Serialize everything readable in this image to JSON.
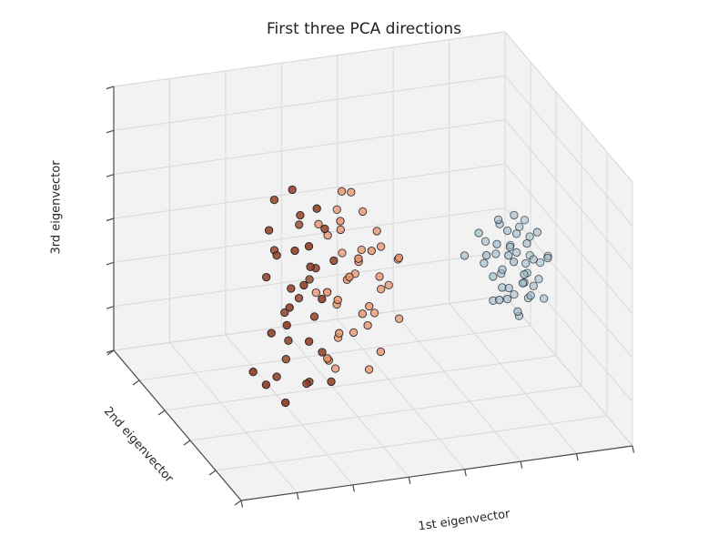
{
  "chart_data": {
    "type": "scatter",
    "projection": "3d",
    "title": "First three PCA directions",
    "xlabel": "1st eigenvector",
    "ylabel": "2nd eigenvector",
    "zlabel": "3rd eigenvector",
    "tick_labels": "none",
    "grid": true,
    "legend": "none",
    "colors": {
      "background": "#ffffff",
      "pane": "#f2f2f2",
      "pane_edge": "#dadada",
      "gridline": "#d9d9d9",
      "axis_line": "#4a4a4a",
      "point_edge": "#1f1f1f",
      "title_text": "#1f1f1f",
      "label_text": "#262626"
    },
    "divisions": {
      "u": 7,
      "v": 5,
      "w": 6
    },
    "series": [
      {
        "name": "cluster-dark-red",
        "color": "#8f3a1f",
        "points": [
          [
            0.3,
            0.52,
            0.82
          ],
          [
            0.34,
            0.45,
            0.78
          ],
          [
            0.28,
            0.6,
            0.74
          ],
          [
            0.33,
            0.55,
            0.7
          ],
          [
            0.37,
            0.48,
            0.68
          ],
          [
            0.31,
            0.42,
            0.66
          ],
          [
            0.26,
            0.58,
            0.64
          ],
          [
            0.35,
            0.62,
            0.62
          ],
          [
            0.3,
            0.5,
            0.6
          ],
          [
            0.38,
            0.44,
            0.58
          ],
          [
            0.27,
            0.55,
            0.56
          ],
          [
            0.33,
            0.47,
            0.55
          ],
          [
            0.29,
            0.63,
            0.53
          ],
          [
            0.36,
            0.52,
            0.51
          ],
          [
            0.31,
            0.46,
            0.49
          ],
          [
            0.25,
            0.57,
            0.47
          ],
          [
            0.34,
            0.41,
            0.46
          ],
          [
            0.3,
            0.53,
            0.44
          ],
          [
            0.37,
            0.6,
            0.42
          ],
          [
            0.28,
            0.48,
            0.4
          ],
          [
            0.33,
            0.56,
            0.38
          ],
          [
            0.26,
            0.44,
            0.36
          ],
          [
            0.35,
            0.5,
            0.34
          ],
          [
            0.3,
            0.58,
            0.32
          ],
          [
            0.24,
            0.5,
            0.3
          ],
          [
            0.32,
            0.45,
            0.28
          ],
          [
            0.29,
            0.52,
            0.25
          ],
          [
            0.36,
            0.47,
            0.22
          ],
          [
            0.22,
            0.48,
            0.12
          ],
          [
            0.27,
            0.55,
            0.1
          ],
          [
            0.33,
            0.5,
            0.09
          ],
          [
            0.38,
            0.46,
            0.11
          ],
          [
            0.25,
            0.42,
            0.08
          ],
          [
            0.31,
            0.6,
            0.13
          ],
          [
            0.2,
            0.52,
            0.15
          ],
          [
            0.35,
            0.54,
            0.07
          ]
        ]
      },
      {
        "name": "cluster-orange",
        "color": "#e8906a",
        "points": [
          [
            0.42,
            0.5,
            0.8
          ],
          [
            0.46,
            0.55,
            0.76
          ],
          [
            0.4,
            0.45,
            0.72
          ],
          [
            0.48,
            0.52,
            0.7
          ],
          [
            0.44,
            0.6,
            0.67
          ],
          [
            0.5,
            0.47,
            0.65
          ],
          [
            0.43,
            0.54,
            0.63
          ],
          [
            0.47,
            0.42,
            0.61
          ],
          [
            0.41,
            0.58,
            0.59
          ],
          [
            0.52,
            0.5,
            0.57
          ],
          [
            0.45,
            0.46,
            0.55
          ],
          [
            0.49,
            0.56,
            0.53
          ],
          [
            0.42,
            0.44,
            0.51
          ],
          [
            0.46,
            0.62,
            0.49
          ],
          [
            0.51,
            0.48,
            0.47
          ],
          [
            0.44,
            0.52,
            0.45
          ],
          [
            0.48,
            0.58,
            0.43
          ],
          [
            0.4,
            0.47,
            0.41
          ],
          [
            0.53,
            0.53,
            0.39
          ],
          [
            0.45,
            0.43,
            0.37
          ],
          [
            0.49,
            0.5,
            0.35
          ],
          [
            0.43,
            0.57,
            0.33
          ],
          [
            0.47,
            0.45,
            0.31
          ],
          [
            0.52,
            0.55,
            0.29
          ],
          [
            0.41,
            0.49,
            0.27
          ],
          [
            0.46,
            0.53,
            0.24
          ],
          [
            0.5,
            0.44,
            0.21
          ],
          [
            0.44,
            0.59,
            0.19
          ],
          [
            0.39,
            0.51,
            0.16
          ],
          [
            0.48,
            0.47,
            0.13
          ],
          [
            0.42,
            0.55,
            0.1
          ],
          [
            0.54,
            0.5,
            0.42
          ],
          [
            0.55,
            0.45,
            0.55
          ],
          [
            0.38,
            0.56,
            0.65
          ],
          [
            0.36,
            0.43,
            0.47
          ],
          [
            0.57,
            0.52,
            0.5
          ],
          [
            0.39,
            0.61,
            0.36
          ],
          [
            0.56,
            0.48,
            0.3
          ],
          [
            0.37,
            0.46,
            0.2
          ],
          [
            0.43,
            0.4,
            0.6
          ]
        ]
      },
      {
        "name": "cluster-blue",
        "color": "#96b7ca",
        "points": [
          [
            0.8,
            0.45,
            0.55
          ],
          [
            0.83,
            0.52,
            0.58
          ],
          [
            0.86,
            0.48,
            0.56
          ],
          [
            0.89,
            0.55,
            0.54
          ],
          [
            0.82,
            0.42,
            0.52
          ],
          [
            0.85,
            0.5,
            0.5
          ],
          [
            0.88,
            0.46,
            0.53
          ],
          [
            0.91,
            0.53,
            0.51
          ],
          [
            0.81,
            0.57,
            0.49
          ],
          [
            0.84,
            0.44,
            0.48
          ],
          [
            0.87,
            0.51,
            0.47
          ],
          [
            0.9,
            0.47,
            0.46
          ],
          [
            0.83,
            0.55,
            0.45
          ],
          [
            0.86,
            0.42,
            0.44
          ],
          [
            0.89,
            0.5,
            0.43
          ],
          [
            0.92,
            0.56,
            0.42
          ],
          [
            0.8,
            0.48,
            0.41
          ],
          [
            0.84,
            0.53,
            0.4
          ],
          [
            0.87,
            0.45,
            0.39
          ],
          [
            0.9,
            0.52,
            0.38
          ],
          [
            0.82,
            0.47,
            0.37
          ],
          [
            0.85,
            0.57,
            0.36
          ],
          [
            0.88,
            0.43,
            0.35
          ],
          [
            0.91,
            0.5,
            0.34
          ],
          [
            0.83,
            0.46,
            0.33
          ],
          [
            0.86,
            0.54,
            0.32
          ],
          [
            0.89,
            0.48,
            0.31
          ],
          [
            0.81,
            0.51,
            0.3
          ],
          [
            0.85,
            0.44,
            0.29
          ],
          [
            0.88,
            0.56,
            0.28
          ],
          [
            0.92,
            0.49,
            0.37
          ],
          [
            0.79,
            0.52,
            0.44
          ],
          [
            0.93,
            0.45,
            0.47
          ],
          [
            0.84,
            0.49,
            0.57
          ],
          [
            0.87,
            0.53,
            0.6
          ],
          [
            0.9,
            0.44,
            0.58
          ],
          [
            0.78,
            0.47,
            0.5
          ],
          [
            0.94,
            0.54,
            0.4
          ],
          [
            0.82,
            0.5,
            0.61
          ],
          [
            0.86,
            0.46,
            0.26
          ],
          [
            0.75,
            0.55,
            0.46
          ],
          [
            0.95,
            0.51,
            0.44
          ],
          [
            0.85,
            0.4,
            0.42
          ],
          [
            0.88,
            0.59,
            0.45
          ],
          [
            0.8,
            0.43,
            0.35
          ],
          [
            0.91,
            0.57,
            0.55
          ],
          [
            0.77,
            0.5,
            0.57
          ],
          [
            0.93,
            0.48,
            0.3
          ]
        ]
      }
    ]
  }
}
